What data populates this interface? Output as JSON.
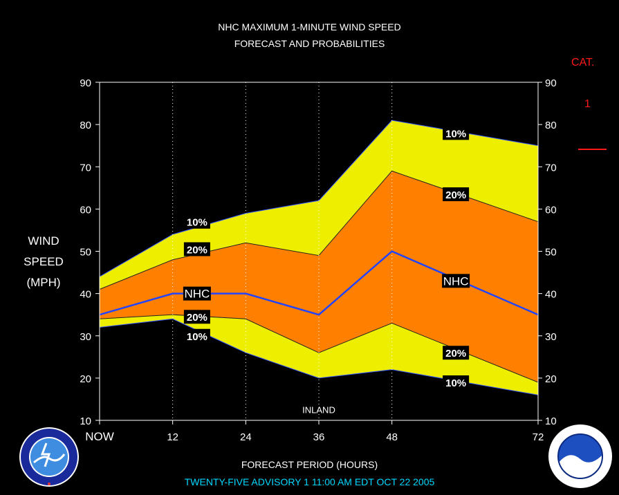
{
  "header": {
    "title_line1": "NHC MAXIMUM 1-MINUTE WIND SPEED",
    "title_line2": "FORECAST AND PROBABILITIES"
  },
  "y_axis_label": [
    "WIND",
    "SPEED",
    "(MPH)"
  ],
  "x_axis_label": "FORECAST PERIOD (HOURS)",
  "advisory_text": "TWENTY-FIVE    ADVISORY  1  11:00 AM  EDT  OCT  22  2005",
  "category_legend": {
    "title": "CAT.",
    "value": "1",
    "color": "#ff1a1a"
  },
  "logos": {
    "left": "NWS-logo-icon",
    "right": "NOAA-logo-icon"
  },
  "colors": {
    "background": "#000000",
    "band_10": "#eeee00",
    "band_20": "#ff8000",
    "nhc_line": "#2244ff",
    "advisory": "#00d8ff"
  },
  "chart_data": {
    "type": "area",
    "title": "NHC MAXIMUM 1-MINUTE WIND SPEED FORECAST AND PROBABILITIES",
    "xlabel": "FORECAST PERIOD (HOURS)",
    "ylabel": "WIND SPEED (MPH)",
    "xlim": [
      0,
      72
    ],
    "ylim": [
      10,
      90
    ],
    "x_ticks": [
      0,
      12,
      24,
      36,
      48,
      72
    ],
    "x_tick_labels": [
      "NOW",
      "12",
      "24",
      "36",
      "48",
      "72"
    ],
    "y_ticks": [
      10,
      20,
      30,
      40,
      50,
      60,
      70,
      80,
      90
    ],
    "grid": "vertical dotted at forecast hours",
    "series": [
      {
        "name": "10%",
        "x": [
          0,
          12,
          24,
          36,
          48,
          72
        ],
        "values": [
          44,
          54,
          59,
          62,
          81,
          75
        ]
      },
      {
        "name": "20%",
        "x": [
          0,
          12,
          24,
          36,
          48,
          72
        ],
        "values": [
          41,
          48,
          52,
          49,
          69,
          57
        ]
      },
      {
        "name": "NHC",
        "x": [
          0,
          12,
          24,
          36,
          48,
          72
        ],
        "values": [
          35,
          40,
          40,
          35,
          50,
          35
        ]
      },
      {
        "name": "20%",
        "x": [
          0,
          12,
          24,
          36,
          48,
          72
        ],
        "values": [
          34,
          35,
          34,
          26,
          33,
          19
        ]
      },
      {
        "name": "10%",
        "x": [
          0,
          12,
          24,
          36,
          48,
          72
        ],
        "values": [
          32,
          34,
          26,
          20,
          22,
          16
        ]
      }
    ],
    "series_labels": [
      {
        "text": "10%",
        "x": 16,
        "y": 57
      },
      {
        "text": "20%",
        "x": 16,
        "y": 50.5
      },
      {
        "text": "NHC",
        "x": 16,
        "y": 40
      },
      {
        "text": "20%",
        "x": 16,
        "y": 34.5
      },
      {
        "text": "10%",
        "x": 16,
        "y": 30
      },
      {
        "text": "10%",
        "x": 58.5,
        "y": 78
      },
      {
        "text": "20%",
        "x": 58.5,
        "y": 63.5
      },
      {
        "text": "NHC",
        "x": 58.5,
        "y": 43
      },
      {
        "text": "20%",
        "x": 58.5,
        "y": 26
      },
      {
        "text": "10%",
        "x": 58.5,
        "y": 19
      }
    ],
    "annotations": [
      {
        "text": "INLAND",
        "x": 36,
        "y": 12.5
      }
    ]
  }
}
